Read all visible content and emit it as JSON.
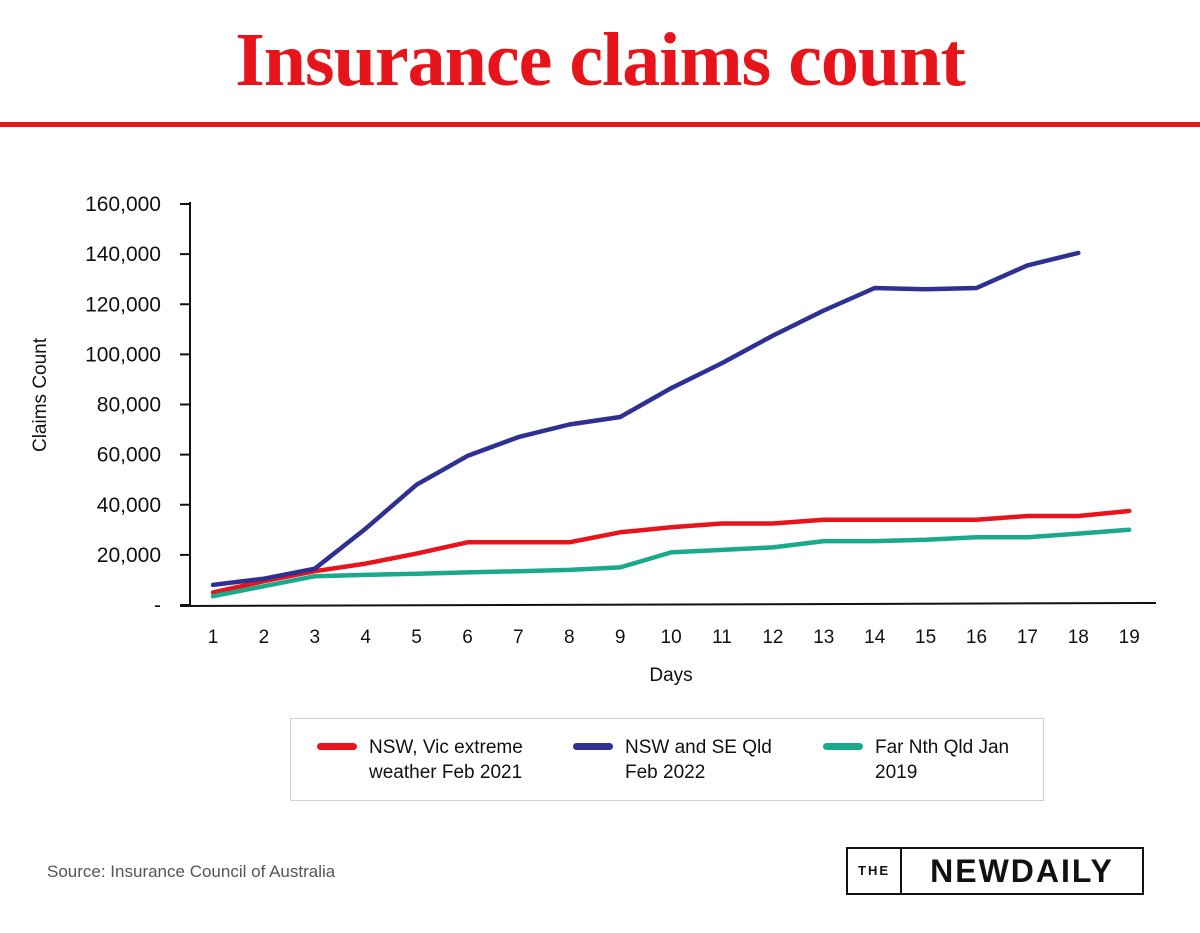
{
  "title": "Insurance claims count",
  "brand_color": "#e8141c",
  "chart_data": {
    "type": "line",
    "categories": [
      "1",
      "2",
      "3",
      "4",
      "5",
      "6",
      "7",
      "8",
      "9",
      "10",
      "11",
      "12",
      "13",
      "14",
      "15",
      "16",
      "17",
      "18",
      "19"
    ],
    "xlabel": "Days",
    "ylabel": "Claims Count",
    "ylim": [
      0,
      160000
    ],
    "yticks": [
      {
        "value": 0,
        "label": "-"
      },
      {
        "value": 20000,
        "label": "20,000"
      },
      {
        "value": 40000,
        "label": "40,000"
      },
      {
        "value": 60000,
        "label": "60,000"
      },
      {
        "value": 80000,
        "label": "80,000"
      },
      {
        "value": 100000,
        "label": "100,000"
      },
      {
        "value": 120000,
        "label": "120,000"
      },
      {
        "value": 140000,
        "label": "140,000"
      },
      {
        "value": 160000,
        "label": "160,000"
      }
    ],
    "grid": false,
    "legend_position": "bottom",
    "series": [
      {
        "name": "NSW, Vic extreme weather Feb 2021",
        "color": "#e8141c",
        "values": [
          5000,
          9500,
          13500,
          16500,
          20500,
          25000,
          25000,
          25000,
          29000,
          31000,
          32500,
          32500,
          34000,
          34000,
          34000,
          34000,
          35500,
          35500,
          37500
        ]
      },
      {
        "name": "NSW and SE Qld Feb 2022",
        "color": "#2e3192",
        "values": [
          8000,
          10500,
          14500,
          30500,
          48000,
          59500,
          67000,
          72000,
          75000,
          86500,
          96500,
          107500,
          117500,
          126500,
          126000,
          126500,
          135500,
          140500,
          null
        ]
      },
      {
        "name": "Far Nth Qld Jan 2019",
        "color": "#1aa98c",
        "values": [
          3500,
          7500,
          11500,
          12000,
          12500,
          13000,
          13500,
          14000,
          15000,
          21000,
          22000,
          23000,
          25500,
          25500,
          26000,
          27000,
          27000,
          28500,
          30000
        ]
      }
    ]
  },
  "legend": {
    "items": [
      {
        "line1": "NSW, Vic extreme",
        "line2": "weather Feb 2021",
        "color": "#e8141c"
      },
      {
        "line1": "NSW and SE Qld",
        "line2": "Feb 2022",
        "color": "#2e3192"
      },
      {
        "line1": "Far Nth Qld Jan",
        "line2": "2019",
        "color": "#1aa98c"
      }
    ]
  },
  "source": "Source: Insurance Council of Australia",
  "logo": {
    "the": "THE",
    "name": "NEWDAILY"
  }
}
